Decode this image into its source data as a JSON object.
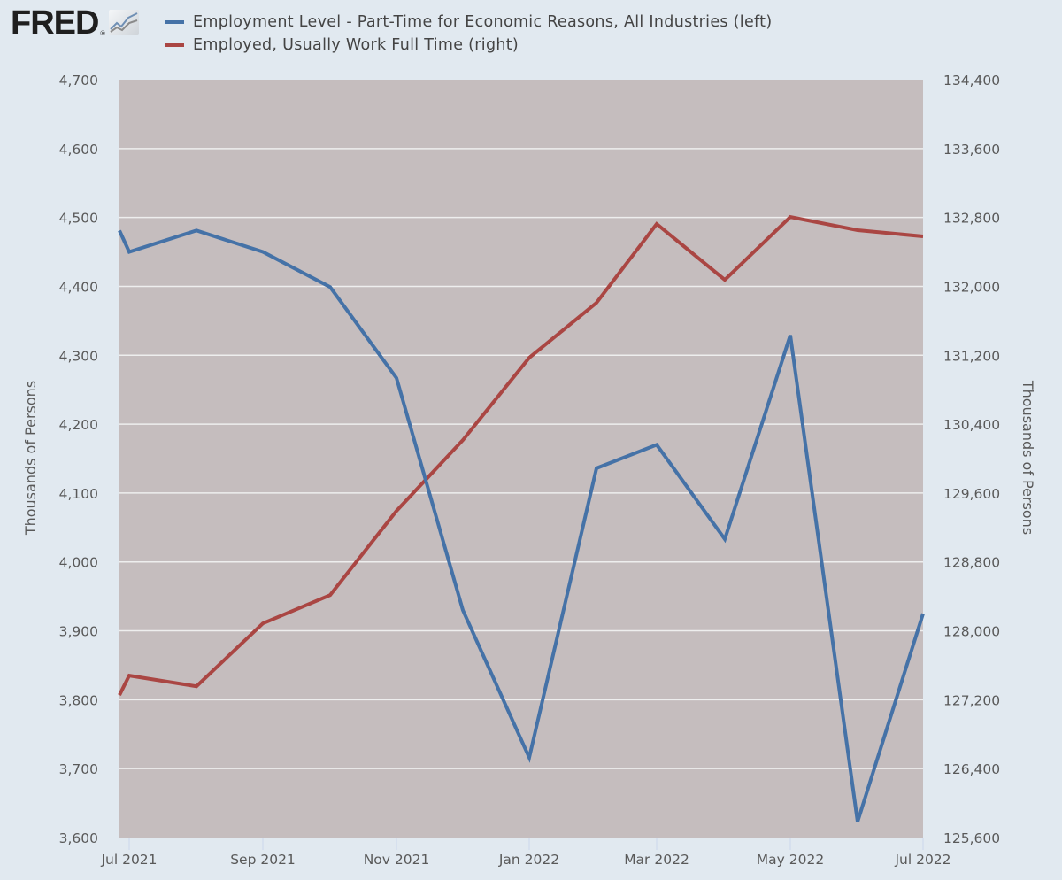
{
  "header": {
    "logo_text": "FRED",
    "logo_reg": "®",
    "logo_icon": "chart-line-icon"
  },
  "legend": [
    {
      "label": "Employment Level - Part-Time for Economic Reasons, All Industries (left)",
      "color": "#4572a7"
    },
    {
      "label": "Employed, Usually Work Full Time (right)",
      "color": "#aa4643"
    }
  ],
  "colors": {
    "background": "#e1e9f0",
    "plot_background": "#c5bdbe",
    "gridline": "#eeeeee",
    "left_series": "#4572a7",
    "right_series": "#aa4643"
  },
  "chart_data": {
    "type": "line",
    "title": "",
    "x": [
      "Jun 2021",
      "Jul 2021",
      "Aug 2021",
      "Sep 2021",
      "Oct 2021",
      "Nov 2021",
      "Dec 2021",
      "Jan 2022",
      "Feb 2022",
      "Mar 2022",
      "Apr 2022",
      "May 2022",
      "Jun 2022",
      "Jul 2022"
    ],
    "x_tick_labels": [
      "Jul 2021",
      "Sep 2021",
      "Nov 2021",
      "Jan 2022",
      "Mar 2022",
      "May 2022",
      "Jul 2022"
    ],
    "series": [
      {
        "name": "Employment Level - Part-Time for Economic Reasons, All Industries (left)",
        "axis": "left",
        "color": "#4572a7",
        "values": [
          4481,
          4450,
          4481,
          4450,
          4399,
          4267,
          3930,
          3716,
          4136,
          4170,
          4033,
          4329,
          3623,
          3925
        ]
      },
      {
        "name": "Employed, Usually Work Full Time (right)",
        "axis": "right",
        "color": "#aa4643",
        "values": [
          127254,
          127480,
          127356,
          128086,
          128415,
          129392,
          130215,
          131171,
          131809,
          132724,
          132076,
          132806,
          132652,
          132580
        ]
      }
    ],
    "xlabel": "",
    "ylabel_left": "Thousands of Persons",
    "ylabel_right": "Thousands of Persons",
    "ylim_left": [
      3600,
      4700
    ],
    "ylim_right": [
      125600,
      134400
    ],
    "y_ticks_left": [
      "4,700",
      "4,600",
      "4,500",
      "4,400",
      "4,300",
      "4,200",
      "4,100",
      "4,000",
      "3,900",
      "3,800",
      "3,700",
      "3,600"
    ],
    "y_ticks_right": [
      "134,400",
      "133,600",
      "132,800",
      "132,000",
      "131,200",
      "130,400",
      "129,600",
      "128,800",
      "128,000",
      "127,200",
      "126,400",
      "125,600"
    ],
    "grid": true,
    "legend_position": "top"
  }
}
